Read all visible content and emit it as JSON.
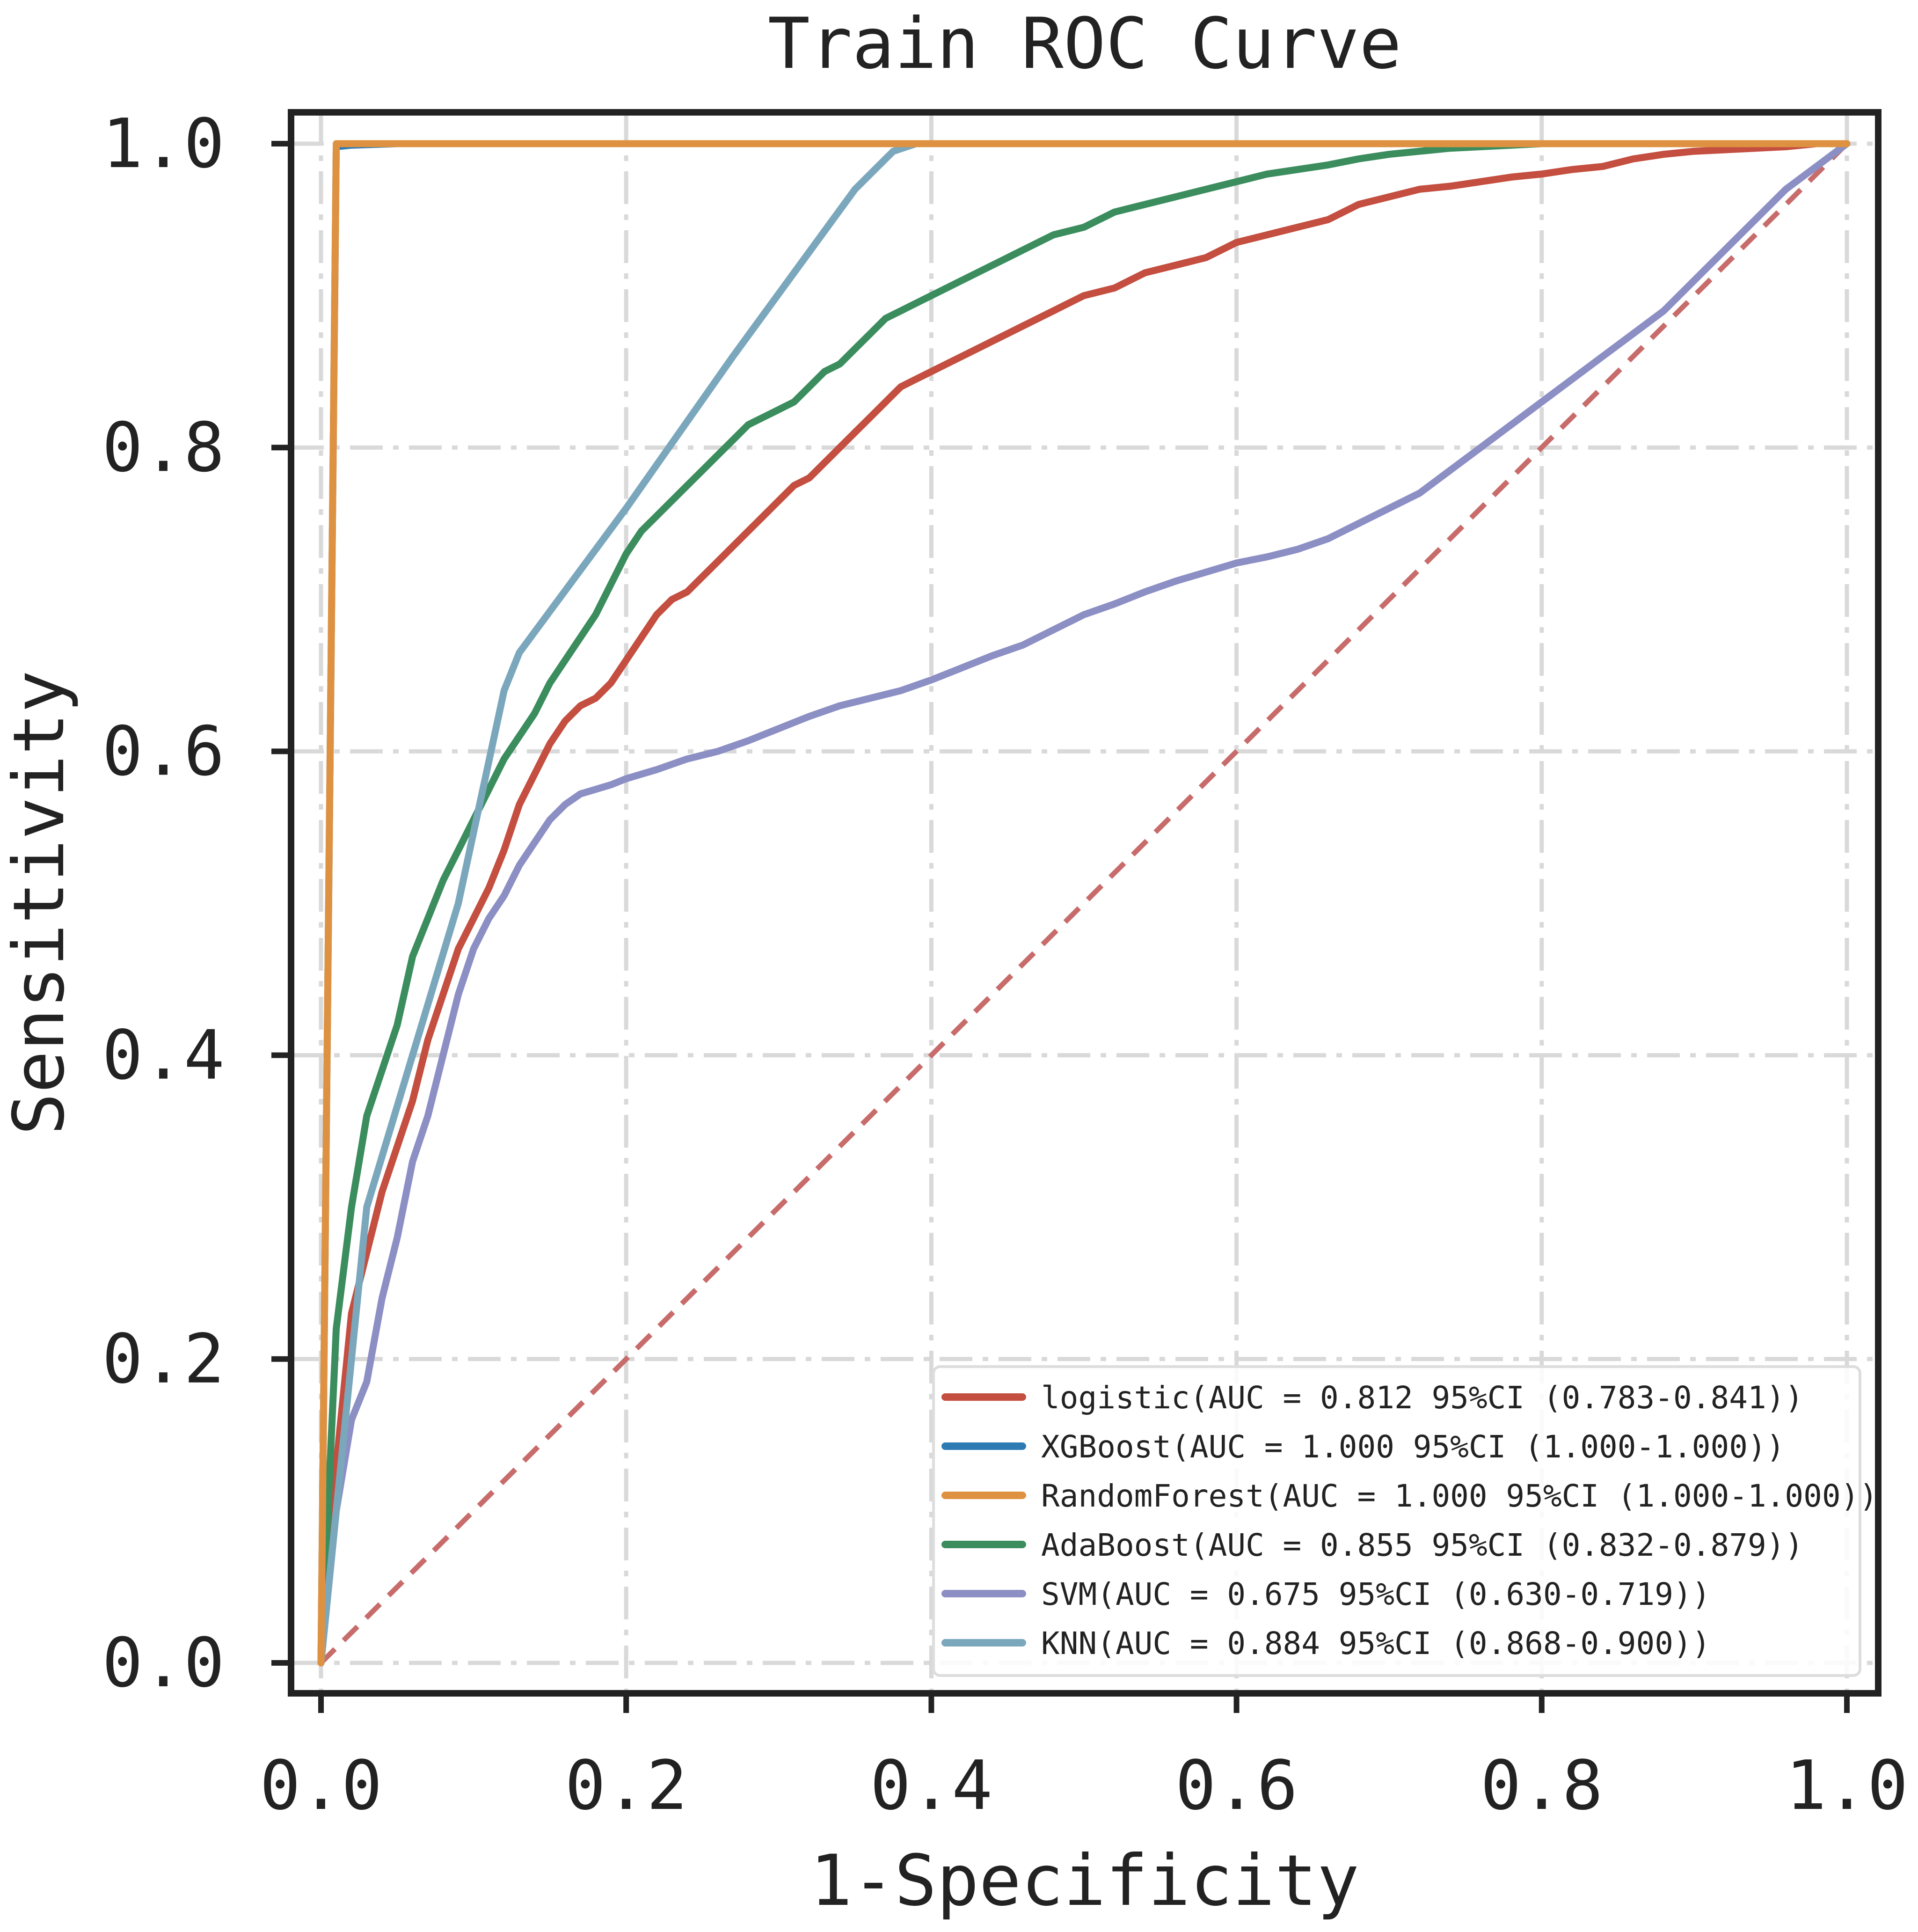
{
  "chart_data": {
    "type": "line",
    "title": "Train ROC Curve",
    "xlabel": "1-Specificity",
    "ylabel": "Sensitivity",
    "xlim": [
      0.0,
      1.0
    ],
    "ylim": [
      0.0,
      1.0
    ],
    "xticks": [
      0.0,
      0.2,
      0.4,
      0.6,
      0.8,
      1.0
    ],
    "yticks": [
      0.0,
      0.2,
      0.4,
      0.6,
      0.8,
      1.0
    ],
    "xtick_labels": [
      "0.0",
      "0.2",
      "0.4",
      "0.6",
      "0.8",
      "1.0"
    ],
    "ytick_labels": [
      "0.0",
      "0.2",
      "0.4",
      "0.6",
      "0.8",
      "1.0"
    ],
    "grid": true,
    "legend_position": "bottom-right",
    "reference_line": {
      "x": [
        0,
        1
      ],
      "y": [
        0,
        1
      ],
      "color": "#c86b6b",
      "style": "dashed"
    },
    "series": [
      {
        "name": "logistic",
        "label": "logistic(AUC = 0.812 95%CI (0.783-0.841))",
        "color": "#c44e3f",
        "x": [
          0,
          0.01,
          0.02,
          0.03,
          0.04,
          0.05,
          0.06,
          0.07,
          0.08,
          0.09,
          0.1,
          0.11,
          0.12,
          0.13,
          0.14,
          0.15,
          0.16,
          0.17,
          0.18,
          0.19,
          0.2,
          0.21,
          0.22,
          0.23,
          0.24,
          0.25,
          0.26,
          0.27,
          0.28,
          0.29,
          0.3,
          0.31,
          0.32,
          0.33,
          0.34,
          0.35,
          0.36,
          0.37,
          0.38,
          0.39,
          0.4,
          0.42,
          0.44,
          0.46,
          0.48,
          0.5,
          0.52,
          0.54,
          0.56,
          0.58,
          0.6,
          0.62,
          0.64,
          0.66,
          0.68,
          0.7,
          0.72,
          0.74,
          0.76,
          0.78,
          0.8,
          0.82,
          0.84,
          0.86,
          0.88,
          0.9,
          0.92,
          0.94,
          0.96,
          0.98,
          1.0
        ],
        "y": [
          0,
          0.13,
          0.23,
          0.27,
          0.31,
          0.34,
          0.37,
          0.41,
          0.44,
          0.47,
          0.49,
          0.51,
          0.535,
          0.565,
          0.585,
          0.605,
          0.62,
          0.63,
          0.635,
          0.645,
          0.66,
          0.675,
          0.69,
          0.7,
          0.705,
          0.715,
          0.725,
          0.735,
          0.745,
          0.755,
          0.765,
          0.775,
          0.78,
          0.79,
          0.8,
          0.81,
          0.82,
          0.83,
          0.84,
          0.845,
          0.85,
          0.86,
          0.87,
          0.88,
          0.89,
          0.9,
          0.905,
          0.915,
          0.92,
          0.925,
          0.935,
          0.94,
          0.945,
          0.95,
          0.96,
          0.965,
          0.97,
          0.972,
          0.975,
          0.978,
          0.98,
          0.983,
          0.985,
          0.99,
          0.993,
          0.995,
          0.996,
          0.997,
          0.998,
          1.0,
          1.0
        ]
      },
      {
        "name": "XGBoost",
        "label": "XGBoost(AUC = 1.000 95%CI (1.000-1.000))",
        "color": "#2e7bb4",
        "x": [
          0,
          0.01,
          0.02,
          0.05,
          1.0
        ],
        "y": [
          0,
          0.998,
          0.999,
          1.0,
          1.0
        ]
      },
      {
        "name": "RandomForest",
        "label": "RandomForest(AUC = 1.000 95%CI (1.000-1.000))",
        "color": "#de9241",
        "x": [
          0,
          0.01,
          1.0
        ],
        "y": [
          0,
          1.0,
          1.0
        ]
      },
      {
        "name": "AdaBoost",
        "label": "AdaBoost(AUC = 0.855 95%CI (0.832-0.879))",
        "color": "#3b8d5e",
        "x": [
          0,
          0.01,
          0.02,
          0.03,
          0.04,
          0.05,
          0.06,
          0.07,
          0.08,
          0.09,
          0.1,
          0.11,
          0.12,
          0.13,
          0.14,
          0.15,
          0.16,
          0.17,
          0.18,
          0.19,
          0.2,
          0.21,
          0.22,
          0.23,
          0.24,
          0.25,
          0.26,
          0.27,
          0.28,
          0.29,
          0.3,
          0.31,
          0.32,
          0.33,
          0.34,
          0.35,
          0.36,
          0.37,
          0.38,
          0.39,
          0.4,
          0.42,
          0.44,
          0.46,
          0.48,
          0.5,
          0.52,
          0.54,
          0.56,
          0.58,
          0.6,
          0.62,
          0.64,
          0.66,
          0.68,
          0.7,
          0.72,
          0.74,
          0.76,
          0.78,
          0.8,
          0.85,
          0.9,
          0.95,
          1.0
        ],
        "y": [
          0,
          0.22,
          0.3,
          0.36,
          0.39,
          0.42,
          0.465,
          0.49,
          0.515,
          0.535,
          0.555,
          0.575,
          0.595,
          0.61,
          0.625,
          0.645,
          0.66,
          0.675,
          0.69,
          0.71,
          0.73,
          0.745,
          0.755,
          0.765,
          0.775,
          0.785,
          0.795,
          0.805,
          0.815,
          0.82,
          0.825,
          0.83,
          0.84,
          0.85,
          0.855,
          0.865,
          0.875,
          0.885,
          0.89,
          0.895,
          0.9,
          0.91,
          0.92,
          0.93,
          0.94,
          0.945,
          0.955,
          0.96,
          0.965,
          0.97,
          0.975,
          0.98,
          0.983,
          0.986,
          0.99,
          0.993,
          0.995,
          0.997,
          0.998,
          0.999,
          1.0,
          1.0,
          1.0,
          1.0,
          1.0
        ]
      },
      {
        "name": "SVM",
        "label": "SVM(AUC = 0.675 95%CI (0.630-0.719))",
        "color": "#8c8fc4",
        "x": [
          0,
          0.01,
          0.02,
          0.03,
          0.04,
          0.05,
          0.06,
          0.07,
          0.08,
          0.09,
          0.1,
          0.11,
          0.12,
          0.13,
          0.14,
          0.15,
          0.16,
          0.17,
          0.18,
          0.19,
          0.2,
          0.22,
          0.24,
          0.26,
          0.28,
          0.3,
          0.32,
          0.34,
          0.36,
          0.38,
          0.4,
          0.42,
          0.44,
          0.46,
          0.48,
          0.5,
          0.52,
          0.54,
          0.56,
          0.58,
          0.6,
          0.62,
          0.64,
          0.66,
          0.68,
          0.7,
          0.72,
          0.74,
          0.76,
          0.78,
          0.8,
          0.82,
          0.84,
          0.86,
          0.88,
          0.9,
          0.92,
          0.94,
          0.96,
          0.98,
          1.0
        ],
        "y": [
          0,
          0.1,
          0.16,
          0.185,
          0.24,
          0.28,
          0.33,
          0.36,
          0.4,
          0.44,
          0.47,
          0.49,
          0.505,
          0.525,
          0.54,
          0.555,
          0.565,
          0.572,
          0.575,
          0.578,
          0.582,
          0.588,
          0.595,
          0.6,
          0.607,
          0.615,
          0.623,
          0.63,
          0.635,
          0.64,
          0.647,
          0.655,
          0.663,
          0.67,
          0.68,
          0.69,
          0.697,
          0.705,
          0.712,
          0.718,
          0.724,
          0.728,
          0.733,
          0.74,
          0.75,
          0.76,
          0.77,
          0.785,
          0.8,
          0.815,
          0.83,
          0.845,
          0.86,
          0.875,
          0.89,
          0.91,
          0.93,
          0.95,
          0.97,
          0.985,
          1.0
        ]
      },
      {
        "name": "KNN",
        "label": "KNN(AUC = 0.884 95%CI (0.868-0.900))",
        "color": "#7ba7bd",
        "x": [
          0,
          0.03,
          0.06,
          0.09,
          0.12,
          0.13,
          0.2,
          0.27,
          0.35,
          0.375,
          0.39,
          0.4,
          1.0
        ],
        "y": [
          0,
          0.3,
          0.4,
          0.5,
          0.64,
          0.665,
          0.76,
          0.86,
          0.97,
          0.995,
          1.0,
          1.0,
          1.0
        ]
      }
    ]
  }
}
